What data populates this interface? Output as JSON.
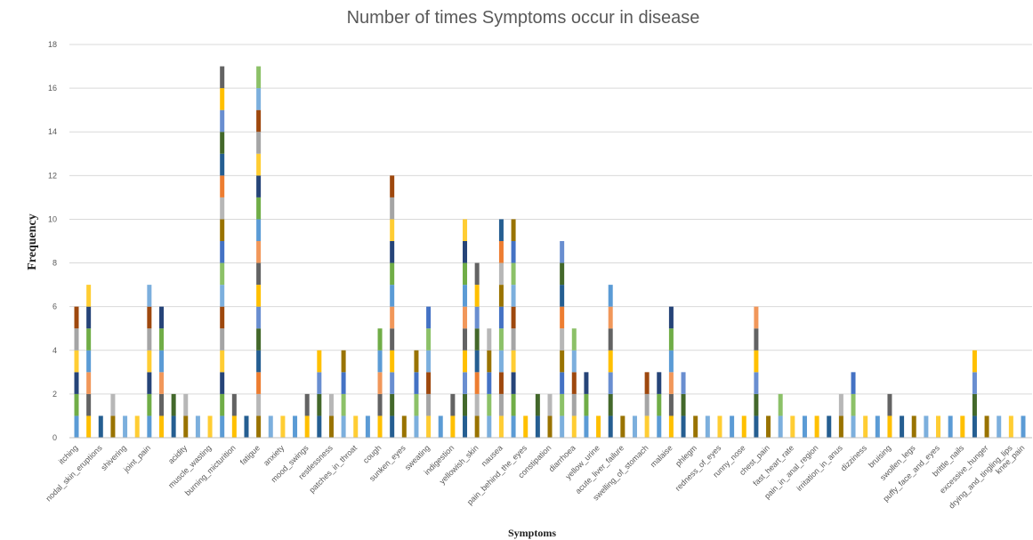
{
  "chart_data": {
    "type": "bar",
    "stacked": true,
    "title": "Number of times Symptoms occur in disease",
    "xlabel": "Symptoms",
    "ylabel": "Frequency",
    "ylim": [
      0,
      18
    ],
    "yticks": [
      0,
      2,
      4,
      6,
      8,
      10,
      12,
      14,
      16,
      18
    ],
    "grid": true,
    "legend": "none",
    "palette": [
      "#5b9bd5",
      "#ed7d31",
      "#a5a5a5",
      "#ffc000",
      "#4472c4",
      "#70ad47",
      "#255e91",
      "#9e480e",
      "#636363",
      "#997300",
      "#264478",
      "#43682b",
      "#7cafdd",
      "#f1975a",
      "#b7b7b7",
      "#ffcd33",
      "#698ed0",
      "#8cc168"
    ],
    "bar_totals": [
      6,
      7,
      1,
      2,
      1,
      1,
      7,
      6,
      2,
      2,
      1,
      1,
      17,
      2,
      1,
      17,
      1,
      1,
      1,
      2,
      4,
      2,
      4,
      1,
      1,
      5,
      12,
      1,
      4,
      6,
      1,
      2,
      10,
      8,
      5,
      10,
      10,
      1,
      2,
      2,
      9,
      5,
      3,
      1,
      7,
      1,
      1,
      3,
      3,
      6,
      3,
      1,
      1,
      1,
      1,
      1,
      6,
      1,
      2,
      1,
      1,
      1,
      1,
      2,
      3,
      1,
      1,
      2,
      1,
      1,
      1,
      1,
      1,
      1,
      4,
      1,
      1,
      1,
      1
    ],
    "category_labels": [
      {
        "label": "itching",
        "bar": 0
      },
      {
        "label": "nodal_skin_eruptions",
        "bar": 2
      },
      {
        "label": "shivering",
        "bar": 4
      },
      {
        "label": "joint_pain",
        "bar": 6
      },
      {
        "label": "acidity",
        "bar": 9
      },
      {
        "label": "muscle_wasting",
        "bar": 11
      },
      {
        "label": "burning_micturition",
        "bar": 13
      },
      {
        "label": "fatigue",
        "bar": 15
      },
      {
        "label": "anxiety",
        "bar": 17
      },
      {
        "label": "mood_swings",
        "bar": 19
      },
      {
        "label": "restlessness",
        "bar": 21
      },
      {
        "label": "patches_in_throat",
        "bar": 23
      },
      {
        "label": "cough",
        "bar": 25
      },
      {
        "label": "sunken_eyes",
        "bar": 27
      },
      {
        "label": "sweating",
        "bar": 29
      },
      {
        "label": "indigestion",
        "bar": 31
      },
      {
        "label": "yellowish_skin",
        "bar": 33
      },
      {
        "label": "nausea",
        "bar": 35
      },
      {
        "label": "pain_behind_the_eyes",
        "bar": 37
      },
      {
        "label": "constipation",
        "bar": 39
      },
      {
        "label": "diarrhoea",
        "bar": 41
      },
      {
        "label": "yellow_urine",
        "bar": 43
      },
      {
        "label": "acute_liver_failure",
        "bar": 45
      },
      {
        "label": "swelling_of_stomach",
        "bar": 47
      },
      {
        "label": "malaise",
        "bar": 49
      },
      {
        "label": "phlegm",
        "bar": 51
      },
      {
        "label": "redness_of_eyes",
        "bar": 53
      },
      {
        "label": "runny_nose",
        "bar": 55
      },
      {
        "label": "chest_pain",
        "bar": 57
      },
      {
        "label": "fast_heart_rate",
        "bar": 59
      },
      {
        "label": "pain_in_anal_region",
        "bar": 61
      },
      {
        "label": "irritation_in_anus",
        "bar": 63
      },
      {
        "label": "dizziness",
        "bar": 65
      },
      {
        "label": "bruising",
        "bar": 67
      },
      {
        "label": "swollen_legs",
        "bar": 69
      },
      {
        "label": "puffy_face_and_eyes",
        "bar": 71
      },
      {
        "label": "brittle_nails",
        "bar": 73
      },
      {
        "label": "excessive_hunger",
        "bar": 75
      },
      {
        "label": "drying_and_tingling_lips",
        "bar": 77
      },
      {
        "label": "knee_pain",
        "bar": 78
      }
    ]
  }
}
